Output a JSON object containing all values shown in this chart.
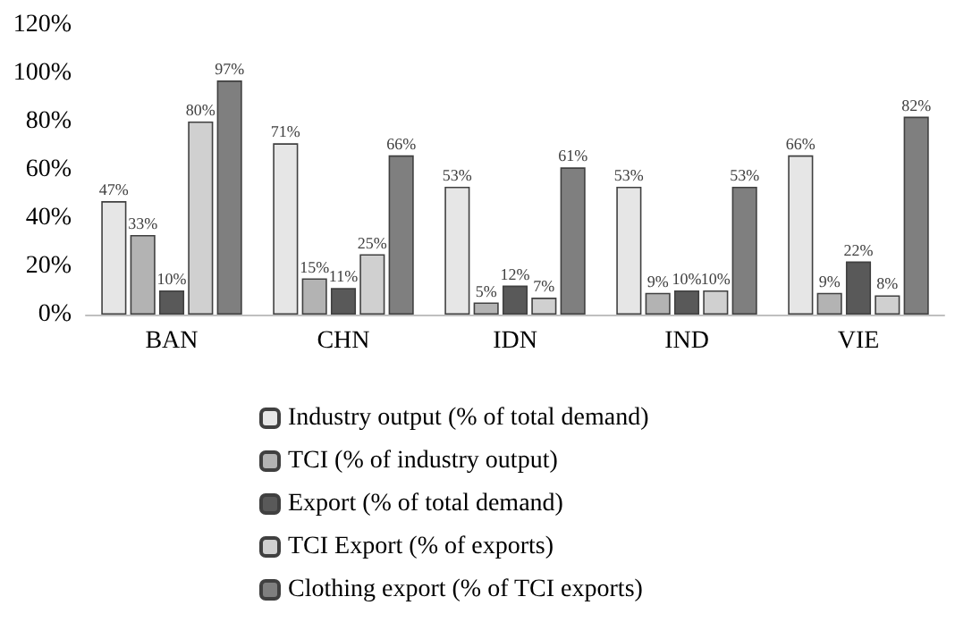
{
  "chart_data": {
    "type": "bar",
    "categories": [
      "BAN",
      "CHN",
      "IDN",
      "IND",
      "VIE"
    ],
    "series": [
      {
        "name": "Industry output (% of total demand)",
        "color": "#e6e6e6",
        "values": [
          47,
          71,
          53,
          53,
          66
        ],
        "value_labels": [
          "47%",
          "71%",
          "53%",
          "53%",
          "66%"
        ]
      },
      {
        "name": "TCI (% of industry output)",
        "color": "#b3b3b3",
        "values": [
          33,
          15,
          5,
          9,
          9
        ],
        "value_labels": [
          "33%",
          "15%",
          "5%",
          "9%",
          "9%"
        ]
      },
      {
        "name": "Export (% of total demand)",
        "color": "#595959",
        "values": [
          10,
          11,
          12,
          10,
          22
        ],
        "value_labels": [
          "10%",
          "11%",
          "12%",
          "10%",
          "22%"
        ]
      },
      {
        "name": "TCI Export (% of exports)",
        "color": "#d0d0d0",
        "values": [
          80,
          25,
          7,
          10,
          8
        ],
        "value_labels": [
          "80%",
          "25%",
          "7%",
          "10%",
          "8%"
        ]
      },
      {
        "name": "Clothing export (% of TCI exports)",
        "color": "#7f7f7f",
        "values": [
          97,
          66,
          61,
          53,
          82
        ],
        "value_labels": [
          "97%",
          "66%",
          "61%",
          "53%",
          "82%"
        ]
      }
    ],
    "ylim": [
      0,
      120
    ],
    "yticks": [
      {
        "value": 0,
        "label": "0%"
      },
      {
        "value": 20,
        "label": "20%"
      },
      {
        "value": 40,
        "label": "40%"
      },
      {
        "value": 60,
        "label": "60%"
      },
      {
        "value": 80,
        "label": "80%"
      },
      {
        "value": 100,
        "label": "100%"
      },
      {
        "value": 120,
        "label": "120%"
      }
    ],
    "grid": false,
    "legend": "bottom"
  }
}
